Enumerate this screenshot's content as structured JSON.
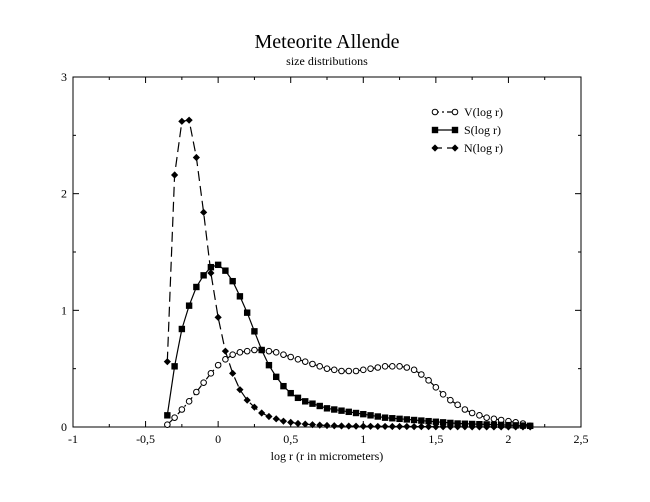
{
  "chart_data": {
    "type": "line",
    "title": "Meteorite Allende",
    "subtitle": "size distributions",
    "xlabel": "log r (r in micrometers)",
    "ylabel": "",
    "xlim": [
      -1,
      2.5
    ],
    "ylim": [
      0,
      3
    ],
    "x_ticks": [
      -1,
      -0.5,
      0,
      0.5,
      1,
      1.5,
      2,
      2.5
    ],
    "x_tick_labels": [
      "-1",
      "-0,5",
      "0",
      "0,5",
      "1",
      "1,5",
      "2",
      "2,5"
    ],
    "y_ticks": [
      0,
      1,
      2,
      3
    ],
    "y_tick_labels": [
      "0",
      "1",
      "2",
      "3"
    ],
    "grid": false,
    "legend_position": "top-right",
    "series": [
      {
        "name": "V(log r)",
        "marker": "open-circle",
        "line": "dash-dot",
        "color": "#000000",
        "x": [
          -0.35,
          -0.3,
          -0.25,
          -0.2,
          -0.15,
          -0.1,
          -0.05,
          0,
          0.05,
          0.1,
          0.15,
          0.2,
          0.25,
          0.3,
          0.35,
          0.4,
          0.45,
          0.5,
          0.55,
          0.6,
          0.65,
          0.7,
          0.75,
          0.8,
          0.85,
          0.9,
          0.95,
          1,
          1.05,
          1.1,
          1.15,
          1.2,
          1.25,
          1.3,
          1.35,
          1.4,
          1.45,
          1.5,
          1.55,
          1.6,
          1.65,
          1.7,
          1.75,
          1.8,
          1.85,
          1.9,
          1.95,
          2,
          2.05,
          2.1,
          2.15
        ],
        "y": [
          0.02,
          0.08,
          0.15,
          0.22,
          0.3,
          0.38,
          0.46,
          0.53,
          0.58,
          0.62,
          0.64,
          0.65,
          0.66,
          0.66,
          0.65,
          0.64,
          0.62,
          0.6,
          0.58,
          0.56,
          0.54,
          0.52,
          0.5,
          0.49,
          0.48,
          0.48,
          0.48,
          0.49,
          0.5,
          0.51,
          0.52,
          0.52,
          0.52,
          0.51,
          0.49,
          0.45,
          0.4,
          0.34,
          0.28,
          0.23,
          0.19,
          0.15,
          0.12,
          0.1,
          0.08,
          0.07,
          0.06,
          0.05,
          0.04,
          0.03,
          0.01
        ]
      },
      {
        "name": "S(log r)",
        "marker": "filled-square",
        "line": "solid",
        "color": "#000000",
        "x": [
          -0.35,
          -0.3,
          -0.25,
          -0.2,
          -0.15,
          -0.1,
          -0.05,
          0,
          0.05,
          0.1,
          0.15,
          0.2,
          0.25,
          0.3,
          0.35,
          0.4,
          0.45,
          0.5,
          0.55,
          0.6,
          0.65,
          0.7,
          0.75,
          0.8,
          0.85,
          0.9,
          0.95,
          1,
          1.05,
          1.1,
          1.15,
          1.2,
          1.25,
          1.3,
          1.35,
          1.4,
          1.45,
          1.5,
          1.55,
          1.6,
          1.65,
          1.7,
          1.75,
          1.8,
          1.85,
          1.9,
          1.95,
          2,
          2.05,
          2.1,
          2.15
        ],
        "y": [
          0.1,
          0.52,
          0.84,
          1.04,
          1.2,
          1.3,
          1.37,
          1.39,
          1.34,
          1.25,
          1.12,
          0.98,
          0.82,
          0.66,
          0.53,
          0.43,
          0.35,
          0.29,
          0.25,
          0.22,
          0.2,
          0.18,
          0.16,
          0.15,
          0.14,
          0.13,
          0.12,
          0.11,
          0.1,
          0.09,
          0.08,
          0.075,
          0.07,
          0.065,
          0.06,
          0.055,
          0.05,
          0.045,
          0.04,
          0.035,
          0.03,
          0.028,
          0.026,
          0.024,
          0.022,
          0.02,
          0.018,
          0.016,
          0.014,
          0.012,
          0.01
        ]
      },
      {
        "name": "N(log r)",
        "marker": "filled-diamond",
        "line": "dashed",
        "color": "#000000",
        "x": [
          -0.35,
          -0.3,
          -0.25,
          -0.2,
          -0.15,
          -0.1,
          -0.05,
          0,
          0.05,
          0.1,
          0.15,
          0.2,
          0.25,
          0.3,
          0.35,
          0.4,
          0.45,
          0.5,
          0.55,
          0.6,
          0.65,
          0.7,
          0.75,
          0.8,
          0.85,
          0.9,
          0.95,
          1,
          1.05,
          1.1,
          1.15,
          1.2,
          1.25,
          1.3,
          1.35,
          1.4,
          1.45,
          1.5,
          1.55,
          1.6,
          1.65,
          1.7,
          1.75,
          1.8,
          1.85,
          1.9,
          1.95,
          2,
          2.05,
          2.1,
          2.15
        ],
        "y": [
          0.56,
          2.16,
          2.62,
          2.63,
          2.31,
          1.84,
          1.32,
          0.94,
          0.65,
          0.46,
          0.32,
          0.23,
          0.17,
          0.12,
          0.09,
          0.07,
          0.05,
          0.04,
          0.03,
          0.025,
          0.02,
          0.016,
          0.013,
          0.011,
          0.009,
          0.008,
          0.007,
          0.006,
          0.006,
          0.005,
          0.005,
          0.004,
          0.004,
          0.004,
          0.003,
          0.003,
          0.003,
          0.002,
          0.002,
          0.002,
          0.002,
          0.002,
          0.001,
          0.001,
          0.001,
          0.001,
          0.001,
          0.001,
          0.001,
          0.001,
          0.001
        ]
      }
    ]
  }
}
